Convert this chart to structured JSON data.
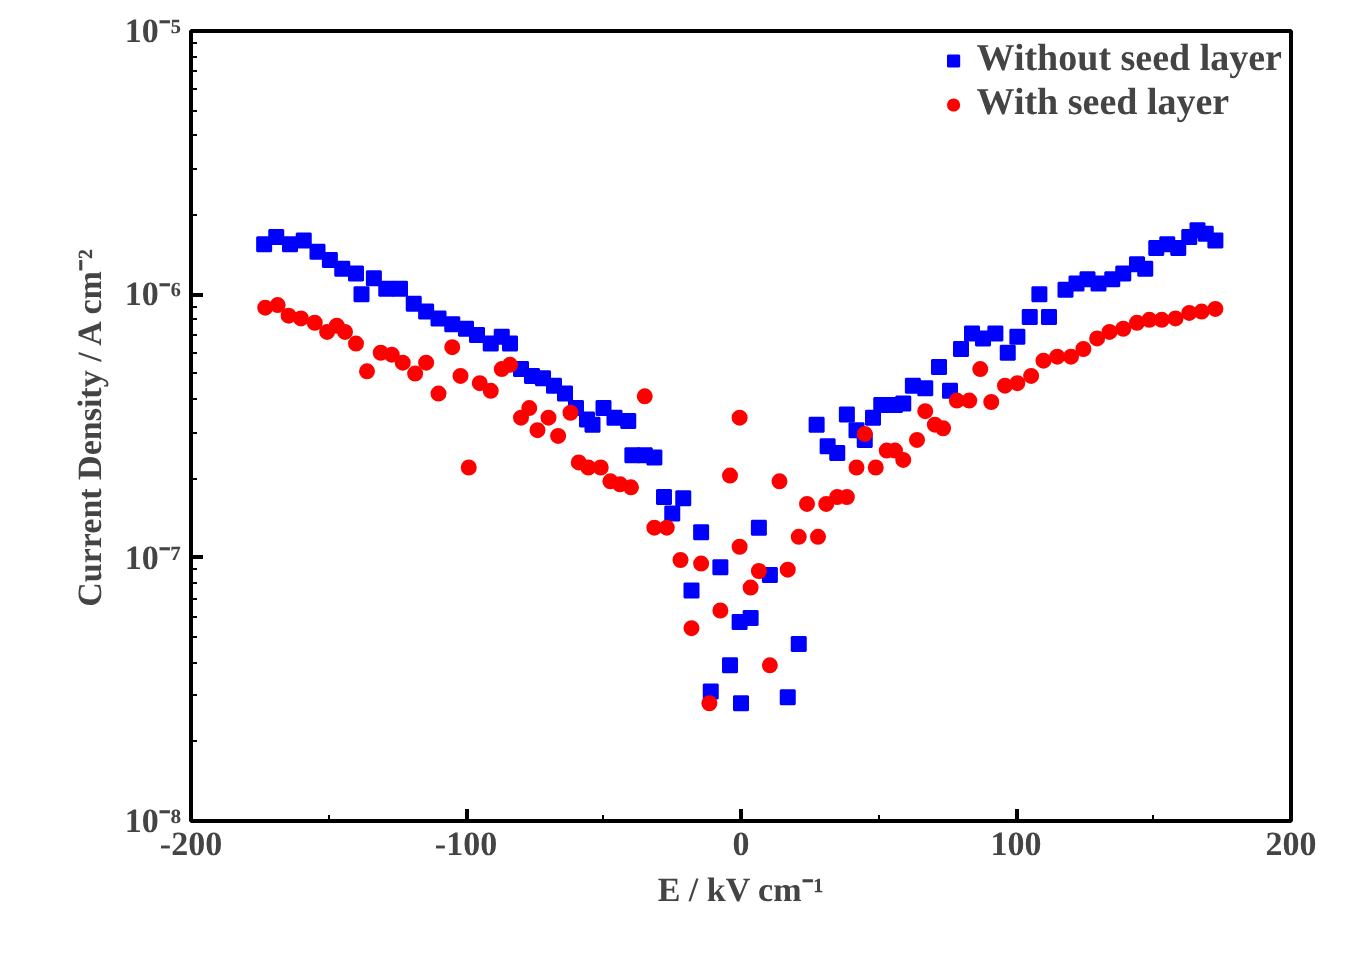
{
  "chart_data": {
    "type": "scatter",
    "xlabel": "E / kV cm⁻¹",
    "ylabel": "Current Density / A cm⁻²",
    "log": "y",
    "grid": false,
    "legend": "top right",
    "xlim": [
      -200,
      200
    ],
    "xticks": [
      -200,
      -100,
      0,
      100,
      200
    ],
    "ylim": [
      1e-08,
      1e-05
    ],
    "yticks": [
      {
        "value": 1e-08,
        "label": "10⁻⁸"
      },
      {
        "value": 1e-07,
        "label": "10⁻⁷"
      },
      {
        "value": 1e-06,
        "label": "10⁻⁶"
      },
      {
        "value": 1e-05,
        "label": "10⁻⁵"
      }
    ],
    "series": [
      {
        "name": "Without seed layer",
        "color": "#0000ff",
        "marker": "square",
        "x": [
          -173.4,
          -169,
          -164,
          -159,
          -154,
          -149.5,
          -145,
          -140,
          -138,
          -133.5,
          -129,
          -124,
          -119,
          -114.5,
          -110,
          -105,
          -100,
          -96,
          -91,
          -87,
          -84,
          -80,
          -76,
          -72,
          -68,
          -64,
          -60,
          -56,
          -54,
          -50,
          -46,
          -41,
          -39.5,
          -35,
          -31.5,
          -28,
          -25,
          -21,
          -18,
          -14.5,
          -11,
          -7.5,
          -4,
          -0.5,
          0,
          3.5,
          6.5,
          10.5,
          17,
          21,
          27.5,
          31.5,
          35,
          38.5,
          42,
          45,
          48,
          51,
          56,
          59,
          62.5,
          67,
          72,
          76,
          80,
          84,
          88,
          92.5,
          97,
          100.5,
          105,
          108.5,
          112,
          118,
          122,
          126,
          130,
          135,
          139,
          144,
          147,
          151,
          155,
          159,
          163,
          166,
          169,
          172.5
        ],
        "values": [
          1.55e-06,
          1.65e-06,
          1.55e-06,
          1.6e-06,
          1.45e-06,
          1.35e-06,
          1.25e-06,
          1.2e-06,
          1e-06,
          1.15e-06,
          1.05e-06,
          1.05e-06,
          9.2e-07,
          8.6e-07,
          8.1e-07,
          7.7e-07,
          7.4e-07,
          7e-07,
          6.5e-07,
          6.9e-07,
          6.5e-07,
          5.2e-07,
          4.9e-07,
          4.8e-07,
          4.5e-07,
          4.2e-07,
          3.7e-07,
          3.35e-07,
          3.2e-07,
          3.7e-07,
          3.4e-07,
          3.3e-07,
          2.45e-07,
          2.45e-07,
          2.4e-07,
          1.7e-07,
          1.47e-07,
          1.68e-07,
          7.5e-08,
          1.25e-07,
          3.1e-08,
          9.2e-08,
          3.9e-08,
          5.7e-08,
          2.8e-08,
          5.9e-08,
          1.3e-07,
          8.6e-08,
          2.95e-08,
          4.7e-08,
          3.2e-07,
          2.65e-07,
          2.5e-07,
          3.5e-07,
          3.05e-07,
          2.8e-07,
          3.4e-07,
          3.8e-07,
          3.8e-07,
          3.85e-07,
          4.5e-07,
          4.4e-07,
          5.3e-07,
          4.3e-07,
          6.2e-07,
          7.1e-07,
          6.8e-07,
          7.1e-07,
          6e-07,
          6.9e-07,
          8.2e-07,
          1e-06,
          8.2e-07,
          1.04e-06,
          1.1e-06,
          1.14e-06,
          1.1e-06,
          1.14e-06,
          1.2e-06,
          1.3e-06,
          1.25e-06,
          1.5e-06,
          1.55e-06,
          1.5e-06,
          1.65e-06,
          1.75e-06,
          1.7e-06,
          1.6e-06
        ]
      },
      {
        "name": "With seed layer",
        "color": "#ff0000",
        "marker": "circle",
        "x": [
          -173,
          -168.5,
          -164.5,
          -160,
          -155,
          -150.5,
          -147,
          -144,
          -140,
          -136,
          -131,
          -127,
          -123,
          -118.5,
          -114.5,
          -110,
          -105,
          -102,
          -99,
          -95,
          -91,
          -87,
          -84,
          -80,
          -77,
          -74,
          -70,
          -66.5,
          -62,
          -59,
          -55.5,
          -51,
          -47.5,
          -44,
          -40,
          -35,
          -31.5,
          -27,
          -22,
          -18,
          -14.5,
          -11.5,
          -7.5,
          -4,
          -0.5,
          -0.5,
          3.5,
          6.5,
          10.5,
          14,
          17,
          21,
          24,
          28,
          31,
          35,
          38.5,
          42,
          45,
          49,
          53,
          56,
          59,
          64,
          67,
          70.5,
          73.5,
          78.5,
          83,
          87,
          91,
          96,
          100.5,
          105.5,
          110,
          115,
          120,
          124.5,
          129.5,
          134,
          139,
          144,
          148.5,
          153,
          158,
          163,
          167.5,
          172.5
        ],
        "values": [
          8.9e-07,
          9.1e-07,
          8.3e-07,
          8.1e-07,
          7.8e-07,
          7.2e-07,
          7.6e-07,
          7.2e-07,
          6.5e-07,
          5.1e-07,
          6e-07,
          5.9e-07,
          5.5e-07,
          5e-07,
          5.5e-07,
          4.2e-07,
          6.3e-07,
          4.9e-07,
          2.2e-07,
          4.6e-07,
          4.3e-07,
          5.2e-07,
          5.4e-07,
          3.4e-07,
          3.7e-07,
          3.05e-07,
          3.4e-07,
          2.9e-07,
          3.55e-07,
          2.3e-07,
          2.2e-07,
          2.2e-07,
          1.95e-07,
          1.9e-07,
          1.85e-07,
          4.1e-07,
          1.3e-07,
          1.3e-07,
          9.8e-08,
          5.4e-08,
          9.5e-08,
          2.8e-08,
          6.3e-08,
          2.05e-07,
          3.4e-07,
          1.1e-07,
          7.7e-08,
          8.9e-08,
          3.9e-08,
          1.95e-07,
          9e-08,
          1.2e-07,
          1.6e-07,
          1.2e-07,
          1.6e-07,
          1.7e-07,
          1.7e-07,
          2.2e-07,
          2.95e-07,
          2.2e-07,
          2.55e-07,
          2.55e-07,
          2.35e-07,
          2.8e-07,
          3.6e-07,
          3.2e-07,
          3.1e-07,
          3.95e-07,
          3.95e-07,
          5.2e-07,
          3.9e-07,
          4.5e-07,
          4.6e-07,
          4.9e-07,
          5.6e-07,
          5.8e-07,
          5.8e-07,
          6.2e-07,
          6.8e-07,
          7.2e-07,
          7.4e-07,
          7.8e-07,
          8e-07,
          8e-07,
          8.1e-07,
          8.5e-07,
          8.6e-07,
          8.8e-07
        ]
      }
    ]
  }
}
